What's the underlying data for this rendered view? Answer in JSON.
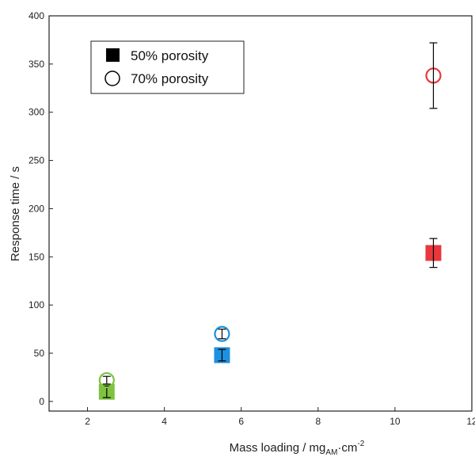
{
  "chart_data": {
    "type": "scatter",
    "xlabel": "Mass loading / mg",
    "xlabel_sub": "AM",
    "xlabel_mid": "·cm",
    "xlabel_sup": "-2",
    "ylabel": "Response time / s",
    "xlim": [
      1,
      12
    ],
    "ylim": [
      -10,
      400
    ],
    "xticks": [
      2,
      4,
      6,
      8,
      10,
      12
    ],
    "yticks": [
      0,
      50,
      100,
      150,
      200,
      250,
      300,
      350,
      400
    ],
    "grid": false,
    "legend": {
      "placement": "top-left",
      "entries": [
        {
          "label": "50% porosity",
          "marker": "square-filled"
        },
        {
          "label": "70% porosity",
          "marker": "circle-open"
        }
      ]
    },
    "series": [
      {
        "name": "50% porosity",
        "marker": "square-filled",
        "points": [
          {
            "x": 2.5,
            "y": 10,
            "err": 6,
            "color": "#7fc241"
          },
          {
            "x": 5.5,
            "y": 48,
            "err": 6,
            "color": "#1f8fe0"
          },
          {
            "x": 11,
            "y": 154,
            "err": 15,
            "color": "#e8383d"
          }
        ]
      },
      {
        "name": "70% porosity",
        "marker": "circle-open",
        "points": [
          {
            "x": 2.5,
            "y": 22,
            "err": 4,
            "color": "#7fc241"
          },
          {
            "x": 5.5,
            "y": 70,
            "err": 5,
            "color": "#1f8fe0"
          },
          {
            "x": 11,
            "y": 338,
            "err": 34,
            "color": "#e8383d"
          }
        ]
      }
    ]
  }
}
